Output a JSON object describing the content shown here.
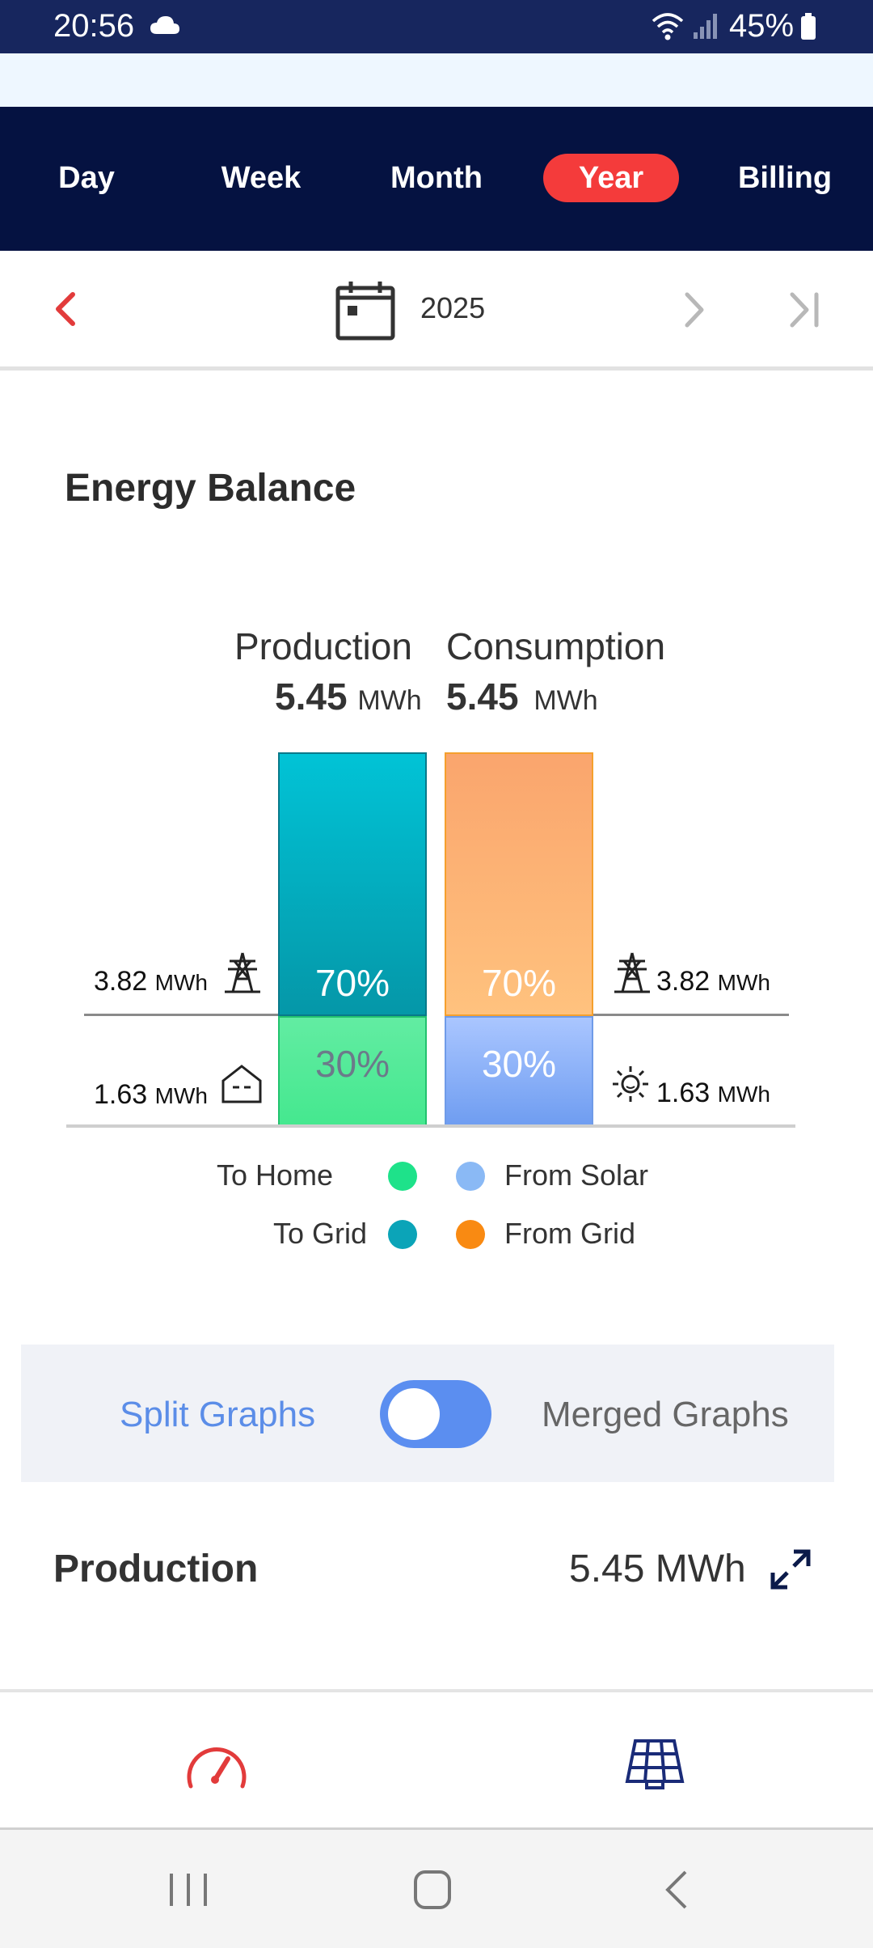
{
  "status_bar": {
    "time": "20:56",
    "battery": "45%"
  },
  "tabs": [
    {
      "label": "Day",
      "active": false
    },
    {
      "label": "Week",
      "active": false
    },
    {
      "label": "Month",
      "active": false
    },
    {
      "label": "Year",
      "active": true
    },
    {
      "label": "Billing",
      "active": false
    }
  ],
  "date_nav": {
    "year": "2025"
  },
  "energy_balance": {
    "title": "Energy Balance",
    "production": {
      "label": "Production",
      "value": "5.45",
      "unit": "MWh"
    },
    "consumption": {
      "label": "Consumption",
      "value": "5.45",
      "unit": "MWh"
    },
    "production_to_grid_pct": "70%",
    "production_to_home_pct": "30%",
    "consumption_from_grid_pct": "70%",
    "consumption_from_solar_pct": "30%",
    "left_grid_value": "3.82",
    "left_grid_unit": "MWh",
    "left_home_value": "1.63",
    "left_home_unit": "MWh",
    "right_grid_value": "3.82",
    "right_grid_unit": "MWh",
    "right_solar_value": "1.63",
    "right_solar_unit": "MWh",
    "legend": {
      "to_home": "To Home",
      "to_grid": "To Grid",
      "from_solar": "From Solar",
      "from_grid": "From Grid"
    },
    "colors": {
      "to_home": "#1ee28a",
      "to_grid": "#0ba4b8",
      "from_solar": "#8ab9f5",
      "from_grid": "#f98a12"
    }
  },
  "graph_toggle": {
    "split_label": "Split Graphs",
    "merged_label": "Merged Graphs",
    "merged_on": false
  },
  "production_row": {
    "label": "Production",
    "value": "5.45 MWh"
  }
}
